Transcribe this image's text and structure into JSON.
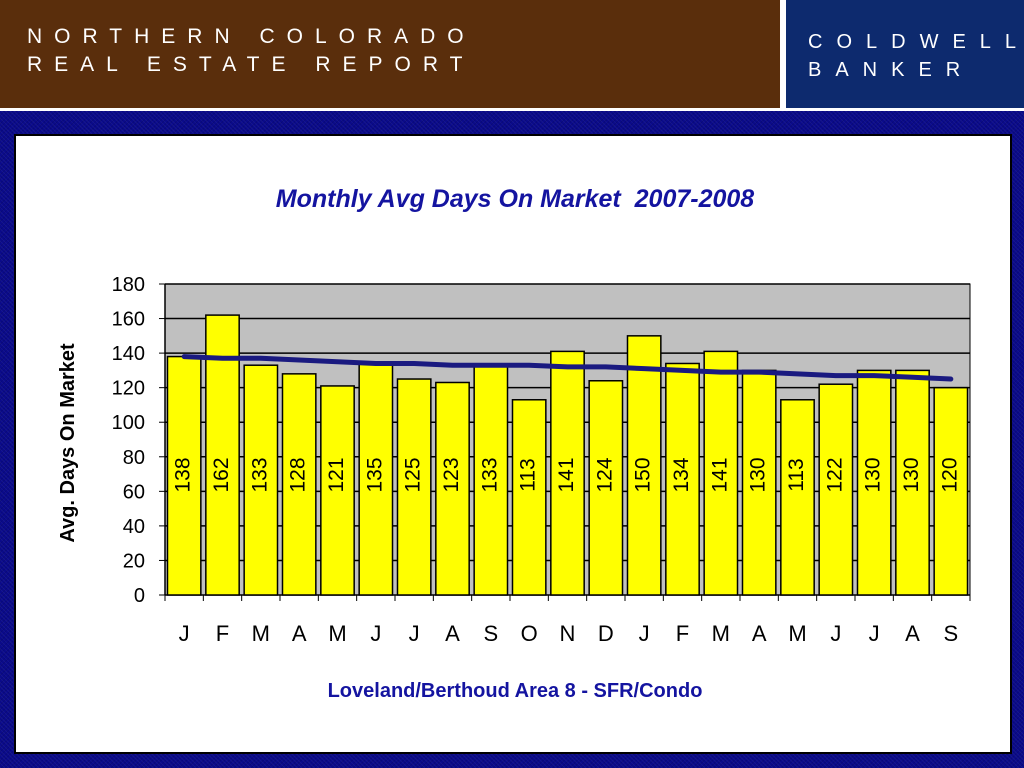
{
  "header": {
    "report_title_line1": "NORTHERN COLORADO",
    "report_title_line2": "REAL ESTATE REPORT",
    "brand_line1": "COLDWELL",
    "brand_line2": "BANKER"
  },
  "colors": {
    "header_brown": "#5a2e0c",
    "header_navy": "#0d2a6e",
    "bar_fill": "#ffff00",
    "plot_bg": "#c0c0c0",
    "trend_line": "#1a1a80",
    "title_color": "#1414a0"
  },
  "chart_data": {
    "type": "bar",
    "title": "Monthly Avg Days On Market  2007-2008",
    "xlabel": "Loveland/Berthoud Area 8 - SFR/Condo",
    "ylabel": "Avg. Days On Market",
    "ylim": [
      0,
      180
    ],
    "yticks": [
      0,
      20,
      40,
      60,
      80,
      100,
      120,
      140,
      160,
      180
    ],
    "grid": true,
    "categories": [
      "J",
      "F",
      "M",
      "A",
      "M",
      "J",
      "J",
      "A",
      "S",
      "O",
      "N",
      "D",
      "J",
      "F",
      "M",
      "A",
      "M",
      "J",
      "J",
      "A",
      "S"
    ],
    "series": [
      {
        "name": "Avg Days On Market",
        "values": [
          138,
          162,
          133,
          128,
          121,
          135,
          125,
          123,
          133,
          113,
          141,
          124,
          150,
          134,
          141,
          130,
          113,
          122,
          130,
          130,
          120
        ],
        "data_labels": [
          "138",
          "162",
          "133",
          "128",
          "121",
          "135",
          "125",
          "123",
          "133",
          "113",
          "141",
          "124",
          "150",
          "134",
          "141",
          "130",
          "113",
          "122",
          "130",
          "130",
          "120"
        ]
      },
      {
        "name": "Trend",
        "type": "line",
        "values": [
          138,
          137,
          137,
          136,
          135,
          134,
          134,
          133,
          133,
          133,
          132,
          132,
          131,
          130,
          129,
          129,
          128,
          127,
          127,
          126,
          125
        ]
      }
    ]
  }
}
